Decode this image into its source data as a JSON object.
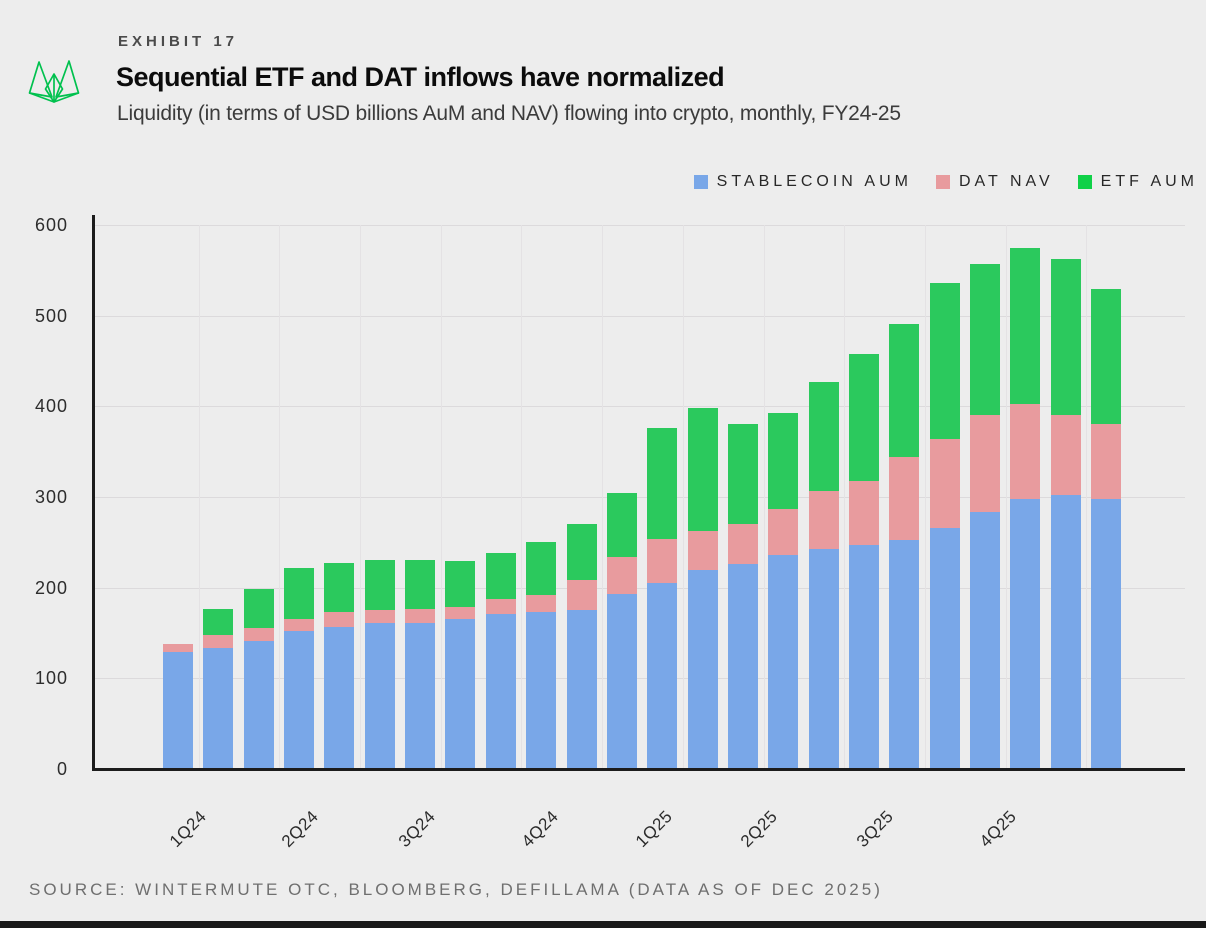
{
  "exhibit_label": "EXHIBIT 17",
  "title": "Sequential ETF and DAT inflows have normalized",
  "subtitle": "Liquidity (in terms of USD billions AuM and NAV) flowing into crypto, monthly, FY24-25",
  "source": "SOURCE: WINTERMUTE OTC, BLOOMBERG, DEFILLAMA (DATA AS OF DEC 2025)",
  "logo": {
    "name": "wintermute-logo",
    "color": "#00c14e"
  },
  "colors": {
    "stablecoin": "#79a7e8",
    "dat": "#e89b9e",
    "etf": "#2bc95d",
    "legend_etf": "#10d148",
    "background": "#ededed",
    "gridline": "#dcdadc",
    "axis": "#1c1c1c"
  },
  "legend": [
    {
      "label": "STABLECOIN AUM",
      "color": "#79a7e8"
    },
    {
      "label": "DAT NAV",
      "color": "#e89b9e"
    },
    {
      "label": "ETF AUM",
      "color": "#10d148"
    }
  ],
  "chart_data": {
    "type": "bar",
    "stacked": true,
    "unit": "USD billions (AuM / NAV)",
    "title": "Sequential ETF and DAT inflows have normalized",
    "xlabel": "",
    "ylabel": "",
    "ylim": [
      0,
      600
    ],
    "yticks": [
      0,
      100,
      200,
      300,
      400,
      500,
      600
    ],
    "grid": "horizontal",
    "legend_position": "top-right",
    "categories": [
      "1Q24",
      "2Q24",
      "3Q24",
      "4Q24",
      "1Q25",
      "2Q25",
      "3Q25",
      "4Q25"
    ],
    "bars_per_quarter": 3,
    "series": [
      {
        "name": "STABLECOIN AUM",
        "color": "#79a7e8",
        "values": [
          129,
          133,
          141,
          152,
          157,
          161,
          161,
          165,
          171,
          173,
          175,
          193,
          205,
          220,
          226,
          236,
          243,
          247,
          253,
          266,
          283,
          298,
          302,
          298
        ]
      },
      {
        "name": "DAT NAV",
        "color": "#e89b9e",
        "values": [
          9,
          15,
          14,
          13,
          16,
          14,
          15,
          14,
          16,
          19,
          33,
          41,
          49,
          42,
          44,
          51,
          64,
          71,
          91,
          98,
          108,
          105,
          89,
          83
        ]
      },
      {
        "name": "ETF AUM",
        "color": "#2bc95d",
        "values": [
          0,
          28,
          44,
          57,
          54,
          55,
          54,
          50,
          51,
          58,
          62,
          70,
          122,
          136,
          110,
          106,
          120,
          140,
          147,
          172,
          166,
          172,
          172,
          149
        ]
      }
    ]
  }
}
